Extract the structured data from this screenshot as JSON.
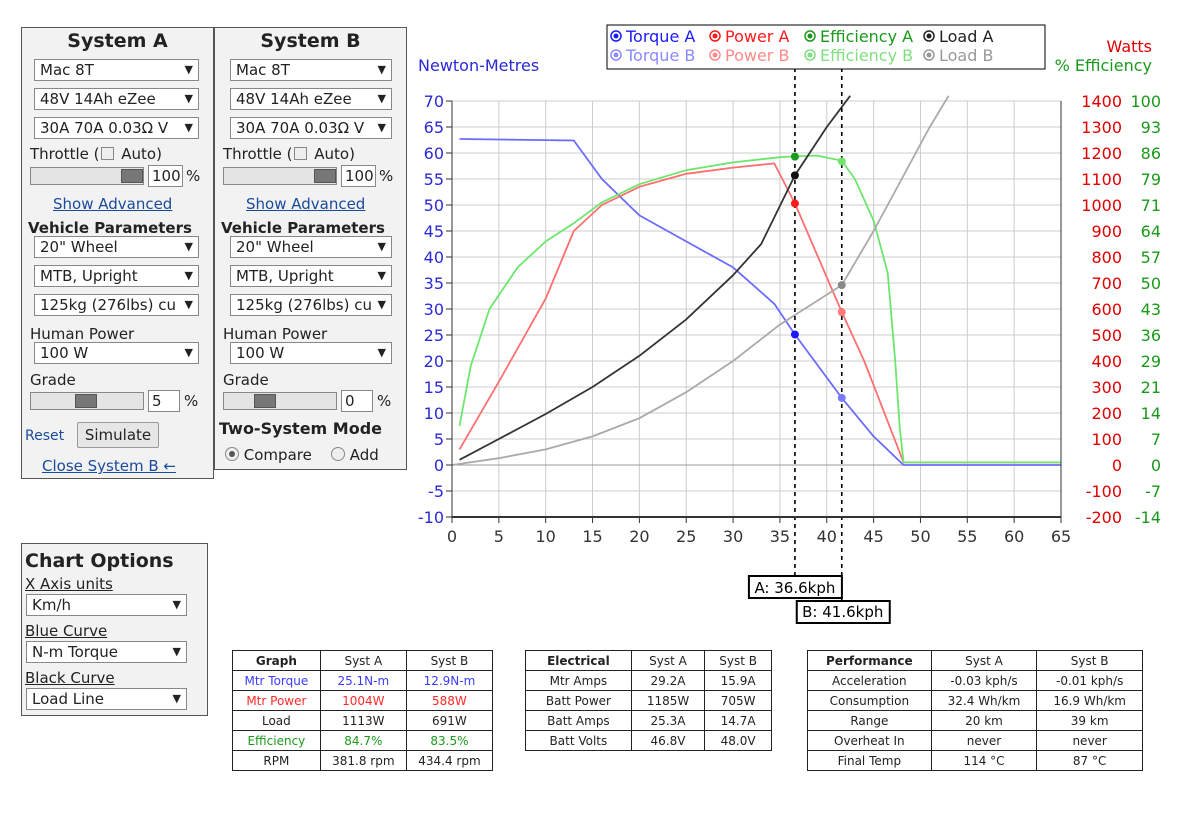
{
  "system_a": {
    "title": "System A",
    "motor": "Mac 8T",
    "battery": "48V 14Ah eZee",
    "controller": "30A 70A 0.03Ω V",
    "throttle_label": "Throttle (",
    "auto_label": "Auto)",
    "throttle_value": "100",
    "throttle_unit": "%",
    "throttle_level_pct": 100,
    "show_advanced": "Show Advanced",
    "vehicle_params": "Vehicle Parameters",
    "wheel": "20\"  Wheel",
    "frame": "MTB, Upright",
    "weight": "125kg (276lbs) cu",
    "human_power_label": "Human Power",
    "human_power": "100 W",
    "grade_label": "Grade",
    "grade_value": "5",
    "grade_unit": "%",
    "reset": "Reset",
    "simulate": "Simulate",
    "close_b": "Close System B ←"
  },
  "system_b": {
    "title": "System B",
    "motor": "Mac 8T",
    "battery": "48V 14Ah eZee",
    "controller": "30A 70A 0.03Ω V",
    "throttle_label": "Throttle (",
    "auto_label": "Auto)",
    "throttle_value": "100",
    "throttle_unit": "%",
    "show_advanced": "Show Advanced",
    "vehicle_params": "Vehicle Parameters",
    "wheel": "20\"  Wheel",
    "frame": "MTB, Upright",
    "weight": "125kg (276lbs) cu",
    "human_power_label": "Human Power",
    "human_power": "100 W",
    "grade_label": "Grade",
    "grade_value": "0",
    "grade_unit": "%",
    "two_system_mode": "Two-System Mode",
    "compare": "Compare",
    "add": "Add"
  },
  "chart_options": {
    "title": "Chart Options",
    "x_axis_label": "X Axis units",
    "x_axis_value": "Km/h",
    "blue_label": "Blue Curve",
    "blue_value": "N-m Torque",
    "black_label": "Black Curve",
    "black_value": "Load Line"
  },
  "colors": {
    "torque": "#6b6bff",
    "power": "#ff6f6f",
    "efficiency": "#6ee66e",
    "load_a": "#333333",
    "load_b": "#aaaaaa",
    "left_axis": "#2a2ad8",
    "right_watts": "#e00000",
    "right_eff": "#1a9a1a"
  },
  "chart_data": {
    "type": "line",
    "left_axis_label": "Newton-Metres",
    "right_axis_label_1": "Watts",
    "right_axis_label_2": "% Efficiency",
    "x_range": [
      0,
      65
    ],
    "x_ticks": [
      0,
      5,
      10,
      15,
      20,
      25,
      30,
      35,
      40,
      45,
      50,
      55,
      60,
      65
    ],
    "y_range": [
      -10,
      70
    ],
    "y_ticks": [
      -10,
      -5,
      0,
      5,
      10,
      15,
      20,
      25,
      30,
      35,
      40,
      45,
      50,
      55,
      60,
      65,
      70
    ],
    "watts_ticks": [
      "-200",
      "-100",
      "0",
      "100",
      "200",
      "300",
      "400",
      "500",
      "600",
      "700",
      "800",
      "900",
      "1000",
      "1100",
      "1200",
      "1300",
      "1400"
    ],
    "eff_ticks": [
      "-14",
      "-7",
      "0",
      "7",
      "14",
      "21",
      "29",
      "36",
      "43",
      "50",
      "57",
      "64",
      "71",
      "79",
      "86",
      "93",
      "100"
    ],
    "grid": true,
    "legend": [
      {
        "name": "Torque A",
        "color": "#1a1aff"
      },
      {
        "name": "Power A",
        "color": "#ff1a1a"
      },
      {
        "name": "Efficiency A",
        "color": "#1a9a1a"
      },
      {
        "name": "Load A",
        "color": "#222222"
      },
      {
        "name": "Torque B",
        "color": "#8a8aff"
      },
      {
        "name": "Power B",
        "color": "#ff8a8a"
      },
      {
        "name": "Efficiency B",
        "color": "#7fe07f"
      },
      {
        "name": "Load B",
        "color": "#999999"
      }
    ],
    "series": [
      {
        "name": "Torque A",
        "color": "#6b6bff",
        "points": [
          [
            0.8,
            62.7
          ],
          [
            5,
            62.6
          ],
          [
            13,
            62.4
          ],
          [
            16,
            55
          ],
          [
            20,
            48
          ],
          [
            25,
            43
          ],
          [
            30,
            38
          ],
          [
            34.4,
            31
          ],
          [
            36.6,
            25.1
          ],
          [
            41.6,
            12.9
          ],
          [
            45,
            5.5
          ],
          [
            48.2,
            0
          ],
          [
            65,
            0
          ]
        ]
      },
      {
        "name": "Power",
        "color": "#ff6f6f",
        "points": [
          [
            0.8,
            3
          ],
          [
            5,
            16
          ],
          [
            10,
            32
          ],
          [
            13,
            45
          ],
          [
            16,
            50
          ],
          [
            20,
            53.5
          ],
          [
            25,
            56
          ],
          [
            30,
            57.2
          ],
          [
            34.4,
            58
          ],
          [
            36.6,
            50.3
          ],
          [
            41.6,
            29.4
          ],
          [
            44,
            20
          ],
          [
            48.2,
            0.5
          ],
          [
            65,
            0.5
          ]
        ]
      },
      {
        "name": "Efficiency",
        "color": "#6ee66e",
        "points": [
          [
            0.8,
            7.5
          ],
          [
            2,
            19
          ],
          [
            4,
            30
          ],
          [
            7,
            38
          ],
          [
            10,
            43
          ],
          [
            13,
            46.5
          ],
          [
            16,
            50.5
          ],
          [
            20,
            54
          ],
          [
            25,
            56.7
          ],
          [
            30,
            58.2
          ],
          [
            35,
            59.2
          ],
          [
            37,
            59.4
          ],
          [
            39,
            59.5
          ],
          [
            41.6,
            58.5
          ],
          [
            43,
            55
          ],
          [
            45,
            47
          ],
          [
            46.5,
            37
          ],
          [
            47.3,
            20
          ],
          [
            47.8,
            7
          ],
          [
            48.2,
            0.5
          ],
          [
            65,
            0.5
          ]
        ]
      },
      {
        "name": "Load A",
        "color": "#333333",
        "points": [
          [
            0.8,
            1
          ],
          [
            5,
            5
          ],
          [
            10,
            9.8
          ],
          [
            15,
            15
          ],
          [
            20,
            21
          ],
          [
            25,
            28
          ],
          [
            30,
            36.5
          ],
          [
            33,
            42.5
          ],
          [
            36.6,
            55.7
          ],
          [
            40,
            65
          ],
          [
            42.5,
            71
          ]
        ]
      },
      {
        "name": "Load B",
        "color": "#aaaaaa",
        "points": [
          [
            0,
            0
          ],
          [
            5,
            1.3
          ],
          [
            10,
            3
          ],
          [
            15,
            5.5
          ],
          [
            20,
            9
          ],
          [
            25,
            14
          ],
          [
            30,
            20
          ],
          [
            35,
            27
          ],
          [
            41.6,
            34.6
          ],
          [
            45,
            45
          ],
          [
            48,
            55
          ],
          [
            51,
            65
          ],
          [
            53,
            71
          ]
        ]
      }
    ],
    "cursor_a": {
      "x": 36.6,
      "label": "A: 36.6kph"
    },
    "cursor_b": {
      "x": 41.6,
      "label": "B: 41.6kph"
    },
    "markers": [
      {
        "series": "Torque A",
        "x": 36.6,
        "y": 25.1,
        "color": "#1a1aff"
      },
      {
        "series": "Power A",
        "x": 36.6,
        "y": 50.3,
        "color": "#ff1a1a"
      },
      {
        "series": "Efficiency A",
        "x": 36.6,
        "y": 59.3,
        "color": "#1a9a1a"
      },
      {
        "series": "Load A",
        "x": 36.6,
        "y": 55.7,
        "color": "#111111"
      },
      {
        "series": "Torque B",
        "x": 41.6,
        "y": 12.9,
        "color": "#7a7aff"
      },
      {
        "series": "Power B",
        "x": 41.6,
        "y": 29.4,
        "color": "#ff7a7a"
      },
      {
        "series": "Efficiency B",
        "x": 41.6,
        "y": 58.4,
        "color": "#6ee66e"
      },
      {
        "series": "Load B",
        "x": 41.6,
        "y": 34.6,
        "color": "#888888"
      }
    ]
  },
  "graph_table": {
    "headers": [
      "Graph",
      "Syst A",
      "Syst B"
    ],
    "rows": [
      {
        "label": "Mtr Torque",
        "a": "25.1N-m",
        "b": "12.9N-m",
        "cls": "c-blue"
      },
      {
        "label": "Mtr Power",
        "a": "1004W",
        "b": "588W",
        "cls": "c-red"
      },
      {
        "label": "Load",
        "a": "1113W",
        "b": "691W",
        "cls": ""
      },
      {
        "label": "Efficiency",
        "a": "84.7%",
        "b": "83.5%",
        "cls": "c-green"
      },
      {
        "label": "RPM",
        "a": "381.8 rpm",
        "b": "434.4 rpm",
        "cls": ""
      }
    ]
  },
  "electrical_table": {
    "headers": [
      "Electrical",
      "Syst A",
      "Syst B"
    ],
    "rows": [
      {
        "label": "Mtr Amps",
        "a": "29.2A",
        "b": "15.9A"
      },
      {
        "label": "Batt Power",
        "a": "1185W",
        "b": "705W"
      },
      {
        "label": "Batt Amps",
        "a": "25.3A",
        "b": "14.7A"
      },
      {
        "label": "Batt Volts",
        "a": "46.8V",
        "b": "48.0V"
      }
    ]
  },
  "performance_table": {
    "headers": [
      "Performance",
      "Syst A",
      "Syst B"
    ],
    "rows": [
      {
        "label": "Acceleration",
        "a": "-0.03 kph/s",
        "b": "-0.01 kph/s"
      },
      {
        "label": "Consumption",
        "a": "32.4 Wh/km",
        "b": "16.9 Wh/km"
      },
      {
        "label": "Range",
        "a": "20 km",
        "b": "39 km"
      },
      {
        "label": "Overheat In",
        "a": "never",
        "b": "never"
      },
      {
        "label": "Final Temp",
        "a": "114 °C",
        "b": "87 °C"
      }
    ]
  }
}
